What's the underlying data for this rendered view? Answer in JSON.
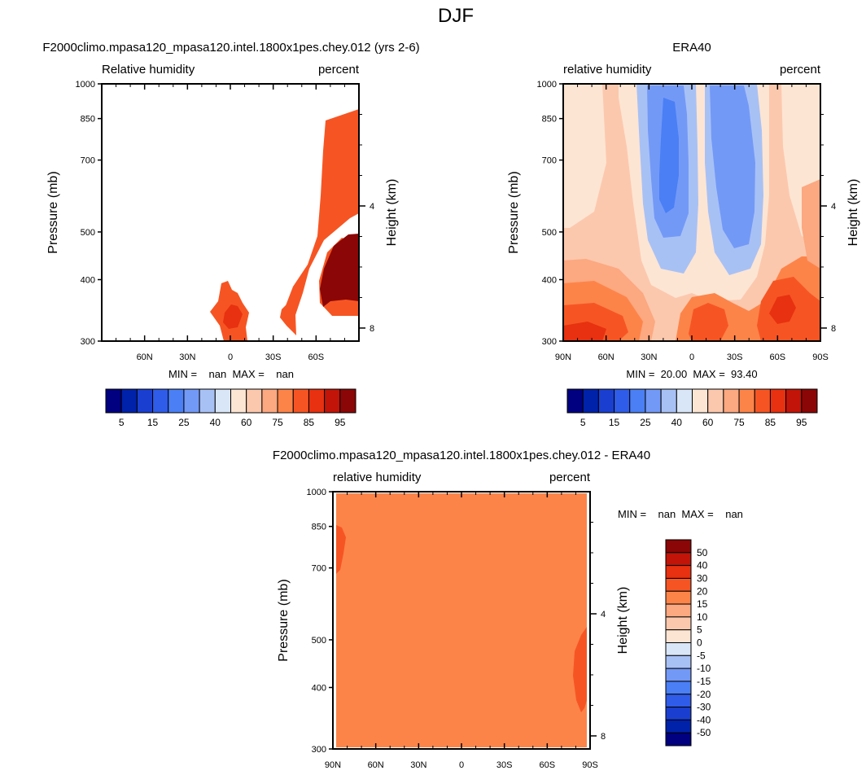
{
  "figure": {
    "title": "DJF"
  },
  "colors": {
    "seq": [
      "#000080",
      "#0022aa",
      "#1a3fd0",
      "#2f5ce8",
      "#4a7ff5",
      "#7399f7",
      "#a8c1f5",
      "#d8e6f8",
      "#fde5d3",
      "#fcc8ad",
      "#fca880",
      "#fd8449",
      "#f65523",
      "#e73110",
      "#c21408",
      "#8b0606"
    ],
    "diff": [
      "#8b0606",
      "#c21408",
      "#e73110",
      "#f65523",
      "#fd8449",
      "#fca880",
      "#fcc8ad",
      "#fde5d3",
      "#d8e6f8",
      "#a8c1f5",
      "#7399f7",
      "#4a7ff5",
      "#2f5ce8",
      "#1a3fd0",
      "#0022aa",
      "#000080"
    ],
    "land_model": "#f65523",
    "land_model_dark": "#e73110",
    "max_model": "#8b0606",
    "era_base": "#fcc8ad",
    "diff_fill": "#fd8449",
    "diff_dark": "#f65523"
  },
  "chart_data": [
    {
      "type": "heatmap",
      "panel": "model",
      "title": "F2000climo.mpasa120_mpasa120.intel.1800x1pes.chey.012 (yrs 2-6)",
      "left_label": "Relative humidity",
      "right_label": "percent",
      "ylabel": "Pressure (mb)",
      "y2label": "Height (km)",
      "x_ticks": [
        "",
        "60N",
        "30N",
        "0",
        "30S",
        "60S",
        ""
      ],
      "x_values": [
        90,
        60,
        30,
        0,
        -30,
        -60,
        -90
      ],
      "y_ticks": [
        "300",
        "400",
        "500",
        "700",
        "850",
        "1000"
      ],
      "y_values": [
        300,
        400,
        500,
        700,
        850,
        1000
      ],
      "y2_ticks": [
        "8",
        "4"
      ],
      "y2_values": [
        8,
        4
      ],
      "ylim": [
        1000,
        300
      ],
      "xlim": [
        90,
        -90
      ],
      "stats": "MIN =    nan  MAX =    nan",
      "levels": [
        "5",
        "15",
        "25",
        "40",
        "60",
        "75",
        "85",
        "95"
      ]
    },
    {
      "type": "heatmap",
      "panel": "obs",
      "title": "ERA40",
      "left_label": "relative humidity",
      "right_label": "percent",
      "ylabel": "Pressure (mb)",
      "y2label": "Height (km)",
      "x_ticks": [
        "90N",
        "60N",
        "30N",
        "0",
        "30S",
        "60S",
        "90S"
      ],
      "x_values": [
        90,
        60,
        30,
        0,
        -30,
        -60,
        -90
      ],
      "y_ticks": [
        "300",
        "400",
        "500",
        "700",
        "850",
        "1000"
      ],
      "y_values": [
        300,
        400,
        500,
        700,
        850,
        1000
      ],
      "y2_ticks": [
        "8",
        "4"
      ],
      "y2_values": [
        8,
        4
      ],
      "ylim": [
        1000,
        300
      ],
      "xlim": [
        90,
        -90
      ],
      "min": 20.0,
      "max": 93.4,
      "stats": "MIN =  20.00  MAX =  93.40",
      "levels": [
        "5",
        "15",
        "25",
        "40",
        "60",
        "75",
        "85",
        "95"
      ]
    },
    {
      "type": "heatmap",
      "panel": "diff",
      "title": "F2000climo.mpasa120_mpasa120.intel.1800x1pes.chey.012 - ERA40",
      "left_label": "relative humidity",
      "right_label": "percent",
      "ylabel": "Pressure (mb)",
      "y2label": "Height (km)",
      "x_ticks": [
        "90N",
        "60N",
        "30N",
        "0",
        "30S",
        "60S",
        "90S"
      ],
      "x_values": [
        90,
        60,
        30,
        0,
        -30,
        -60,
        -90
      ],
      "y_ticks": [
        "300",
        "400",
        "500",
        "700",
        "850",
        "1000"
      ],
      "y_values": [
        300,
        400,
        500,
        700,
        850,
        1000
      ],
      "y2_ticks": [
        "8",
        "4"
      ],
      "y2_values": [
        8,
        4
      ],
      "ylim": [
        1000,
        300
      ],
      "xlim": [
        90,
        -90
      ],
      "stats": "MIN =    nan  MAX =    nan",
      "levels": [
        "50",
        "40",
        "30",
        "20",
        "15",
        "10",
        "5",
        "0",
        "-5",
        "-10",
        "-15",
        "-20",
        "-30",
        "-40",
        "-50"
      ]
    }
  ]
}
